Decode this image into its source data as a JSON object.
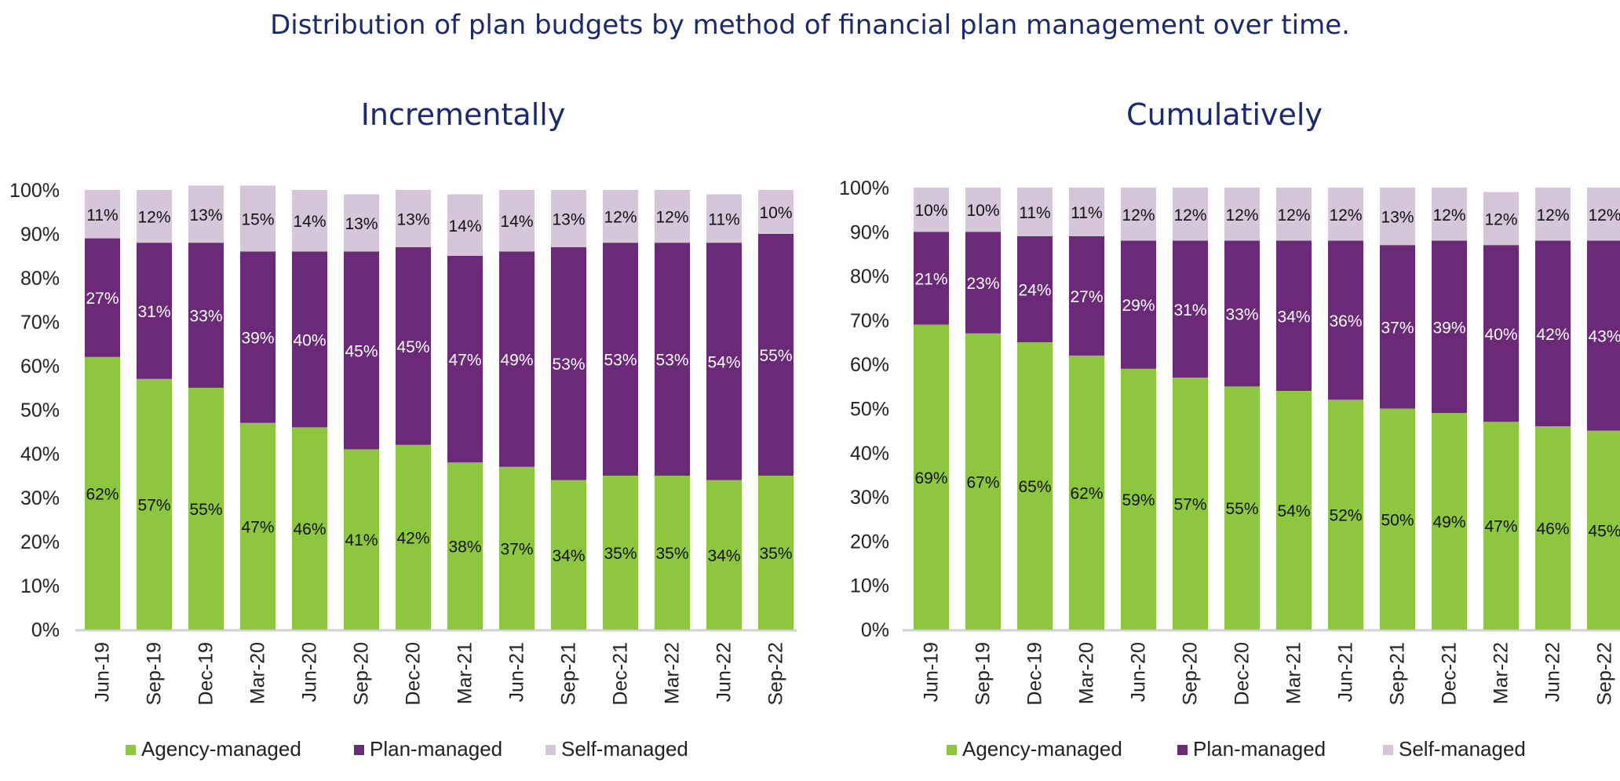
{
  "header": {
    "title": "Distribution of plan budgets by method of financial plan management over time."
  },
  "colors": {
    "agency": "#8dc63f",
    "plan": "#6a2a78",
    "self": "#d5c6da",
    "axis": "#d0d0d0",
    "title": "#1b2a6b"
  },
  "chart_data": [
    {
      "type": "bar",
      "stacked": true,
      "title": "Incrementally",
      "categories": [
        "Jun-19",
        "Sep-19",
        "Dec-19",
        "Mar-20",
        "Jun-20",
        "Sep-20",
        "Dec-20",
        "Mar-21",
        "Jun-21",
        "Sep-21",
        "Dec-21",
        "Mar-22",
        "Jun-22",
        "Sep-22"
      ],
      "series": [
        {
          "name": "Agency-managed",
          "values": [
            62,
            57,
            55,
            47,
            46,
            41,
            42,
            38,
            37,
            34,
            35,
            35,
            34,
            35
          ]
        },
        {
          "name": "Plan-managed",
          "values": [
            27,
            31,
            33,
            39,
            40,
            45,
            45,
            47,
            49,
            53,
            53,
            53,
            54,
            55
          ]
        },
        {
          "name": "Self-managed",
          "values": [
            11,
            12,
            13,
            15,
            14,
            13,
            13,
            14,
            14,
            13,
            12,
            12,
            11,
            10
          ]
        }
      ],
      "y_ticks": [
        "0%",
        "10%",
        "20%",
        "30%",
        "40%",
        "50%",
        "60%",
        "70%",
        "80%",
        "90%",
        "100%"
      ],
      "ylim": [
        0,
        100
      ],
      "legend_position": "bottom"
    },
    {
      "type": "bar",
      "stacked": true,
      "title": "Cumulatively",
      "categories": [
        "Jun-19",
        "Sep-19",
        "Dec-19",
        "Mar-20",
        "Jun-20",
        "Sep-20",
        "Dec-20",
        "Mar-21",
        "Jun-21",
        "Sep-21",
        "Dec-21",
        "Mar-22",
        "Jun-22",
        "Sep-22"
      ],
      "series": [
        {
          "name": "Agency-managed",
          "values": [
            69,
            67,
            65,
            62,
            59,
            57,
            55,
            54,
            52,
            50,
            49,
            47,
            46,
            45
          ]
        },
        {
          "name": "Plan-managed",
          "values": [
            21,
            23,
            24,
            27,
            29,
            31,
            33,
            34,
            36,
            37,
            39,
            40,
            42,
            43
          ]
        },
        {
          "name": "Self-managed",
          "values": [
            10,
            10,
            11,
            11,
            12,
            12,
            12,
            12,
            12,
            13,
            12,
            12,
            12,
            12
          ]
        }
      ],
      "y_ticks": [
        "0%",
        "10%",
        "20%",
        "30%",
        "40%",
        "50%",
        "60%",
        "70%",
        "80%",
        "90%",
        "100%"
      ],
      "ylim": [
        0,
        100
      ],
      "legend_position": "bottom"
    }
  ]
}
